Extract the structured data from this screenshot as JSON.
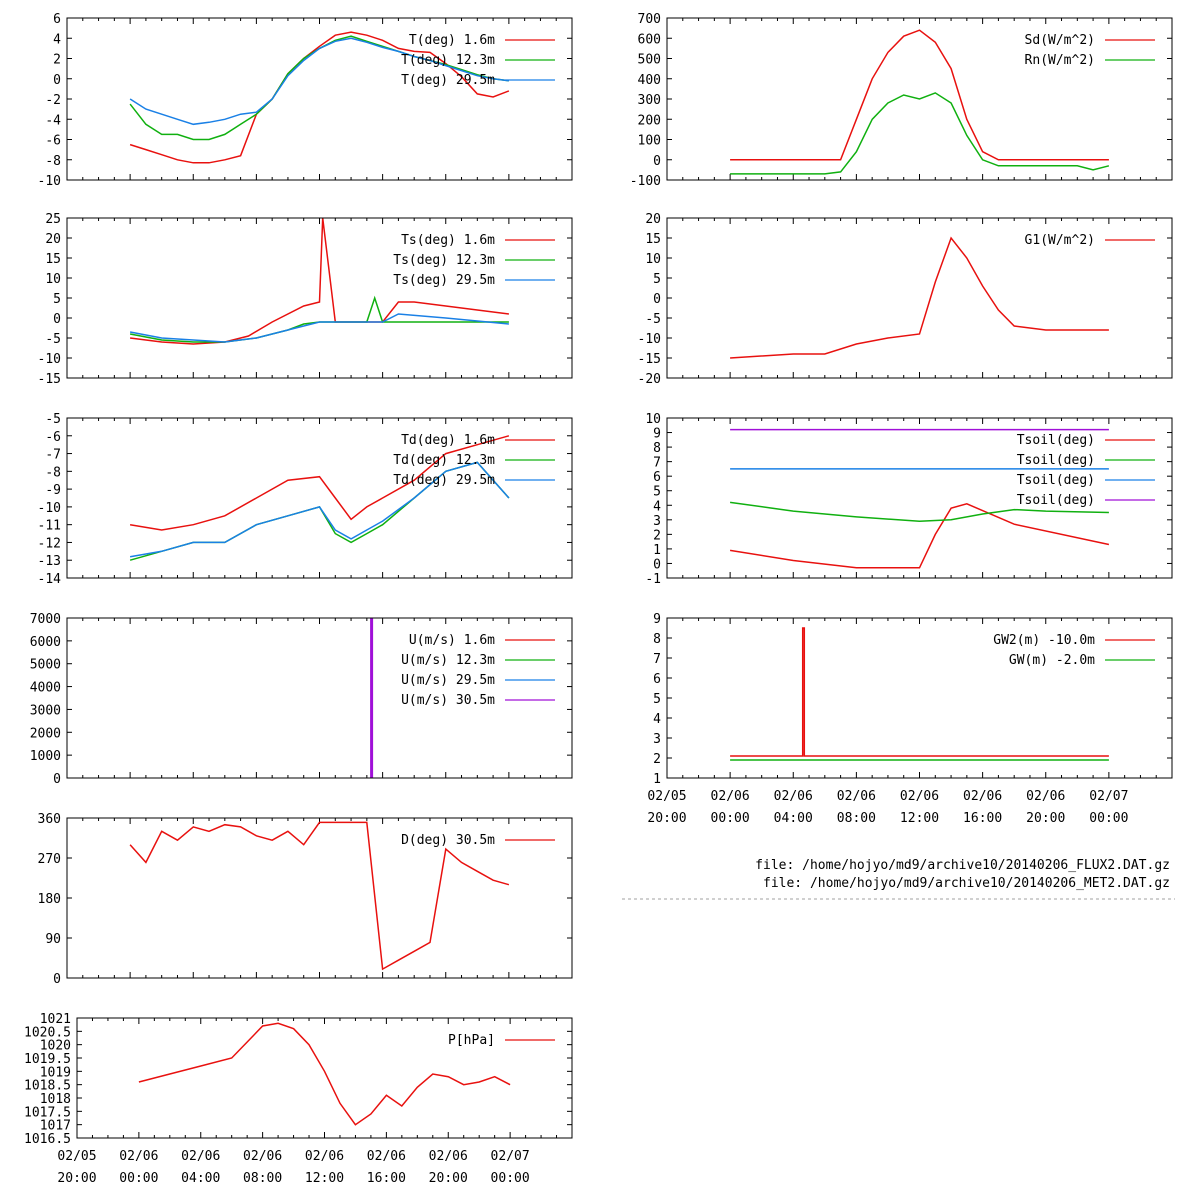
{
  "colors": {
    "red": "#e8110f",
    "green": "#10b010",
    "blue": "#1a80e6",
    "purple": "#a010d8"
  },
  "chart_data": [
    {
      "id": "air-temperature",
      "type": "line",
      "x_range": [
        -4,
        28
      ],
      "ylim": [
        -10,
        6
      ],
      "yticks": [
        -10,
        -8,
        -6,
        -4,
        -2,
        0,
        2,
        4,
        6
      ],
      "series": [
        {
          "name": "T(deg)  1.6m",
          "color": "#e8110f",
          "x": [
            0,
            1,
            2,
            3,
            4,
            5,
            6,
            7,
            8,
            9,
            10,
            11,
            12,
            13,
            14,
            15,
            16,
            17,
            18,
            19,
            20,
            21,
            22,
            23,
            24
          ],
          "values": [
            -6.5,
            -7.0,
            -7.5,
            -8.0,
            -8.3,
            -8.3,
            -8.0,
            -7.6,
            -3.5,
            -2.0,
            0.5,
            2.0,
            3.2,
            4.3,
            4.6,
            4.3,
            3.8,
            3.0,
            2.7,
            2.6,
            1.5,
            0.2,
            -1.5,
            -1.8,
            -1.2
          ]
        },
        {
          "name": "T(deg) 12.3m",
          "color": "#10b010",
          "x": [
            0,
            1,
            2,
            3,
            4,
            5,
            6,
            7,
            8,
            9,
            10,
            11,
            12,
            13,
            14,
            15,
            16,
            17,
            18,
            19,
            20,
            21,
            22,
            23,
            24
          ],
          "values": [
            -2.5,
            -4.5,
            -5.5,
            -5.5,
            -6.0,
            -6.0,
            -5.5,
            -4.5,
            -3.5,
            -2.0,
            0.5,
            2.0,
            3.0,
            3.8,
            4.2,
            3.7,
            3.2,
            2.7,
            2.2,
            1.8,
            1.4,
            0.9,
            0.4,
            0.0,
            -0.2
          ]
        },
        {
          "name": "T(deg) 29.5m",
          "color": "#1a80e6",
          "x": [
            0,
            1,
            2,
            3,
            4,
            5,
            6,
            7,
            8,
            9,
            10,
            11,
            12,
            13,
            14,
            15,
            16,
            17,
            18,
            19,
            20,
            21,
            22,
            23,
            24
          ],
          "values": [
            -2.0,
            -3.0,
            -3.5,
            -4.0,
            -4.5,
            -4.3,
            -4.0,
            -3.5,
            -3.3,
            -2.0,
            0.3,
            1.8,
            3.0,
            3.7,
            4.0,
            3.6,
            3.1,
            2.7,
            2.2,
            1.8,
            1.3,
            0.8,
            0.3,
            0.0,
            -0.2
          ]
        }
      ]
    },
    {
      "id": "radiation",
      "type": "line",
      "x_range": [
        -4,
        28
      ],
      "ylim": [
        -100,
        700
      ],
      "yticks": [
        -100,
        0,
        100,
        200,
        300,
        400,
        500,
        600,
        700
      ],
      "series": [
        {
          "name": "Sd(W/m^2)",
          "color": "#e8110f",
          "x": [
            0,
            6,
            7,
            8,
            9,
            10,
            11,
            12,
            13,
            14,
            15,
            16,
            17,
            24
          ],
          "values": [
            0,
            0,
            0,
            200,
            400,
            530,
            610,
            640,
            580,
            450,
            200,
            40,
            0,
            0
          ]
        },
        {
          "name": "Rn(W/m^2)",
          "color": "#10b010",
          "x": [
            0,
            6,
            7,
            8,
            9,
            10,
            11,
            12,
            13,
            14,
            15,
            16,
            17,
            22,
            23,
            24
          ],
          "values": [
            -70,
            -70,
            -60,
            40,
            200,
            280,
            320,
            300,
            330,
            280,
            120,
            0,
            -30,
            -30,
            -50,
            -30
          ]
        }
      ]
    },
    {
      "id": "surface-temperature",
      "type": "line",
      "x_range": [
        -4,
        28
      ],
      "ylim": [
        -15,
        25
      ],
      "yticks": [
        -15,
        -10,
        -5,
        0,
        5,
        10,
        15,
        20,
        25
      ],
      "series": [
        {
          "name": "Ts(deg)  1.6m",
          "color": "#e8110f",
          "x": [
            0,
            2,
            4,
            6,
            7.5,
            9,
            11,
            12,
            12.2,
            13,
            14,
            16,
            17,
            18,
            20,
            22,
            24
          ],
          "values": [
            -5,
            -6,
            -6.5,
            -6,
            -4.5,
            -1,
            3,
            4,
            25,
            -1,
            -1,
            -1,
            4,
            4,
            3,
            2,
            1
          ]
        },
        {
          "name": "Ts(deg) 12.3m",
          "color": "#10b010",
          "x": [
            0,
            2,
            4,
            6,
            8,
            10,
            11,
            12,
            14,
            15,
            15.5,
            16,
            17,
            24
          ],
          "values": [
            -4,
            -5.5,
            -6,
            -6,
            -5,
            -3,
            -1.5,
            -1,
            -1,
            -1,
            5,
            -1,
            -1,
            -1
          ]
        },
        {
          "name": "Ts(deg) 29.5m",
          "color": "#1a80e6",
          "x": [
            0,
            2,
            4,
            6,
            8,
            10,
            12,
            14,
            16,
            17,
            20,
            24
          ],
          "values": [
            -3.5,
            -5,
            -5.5,
            -6,
            -5,
            -3,
            -1,
            -1,
            -1,
            1,
            0,
            -1.5
          ]
        }
      ]
    },
    {
      "id": "ground-heat-flux",
      "type": "line",
      "x_range": [
        -4,
        28
      ],
      "ylim": [
        -20,
        20
      ],
      "yticks": [
        -20,
        -15,
        -10,
        -5,
        0,
        5,
        10,
        15,
        20
      ],
      "series": [
        {
          "name": "G1(W/m^2)",
          "color": "#e8110f",
          "x": [
            0,
            4,
            6,
            8,
            10,
            12,
            13,
            14,
            15,
            16,
            17,
            18,
            20,
            24
          ],
          "values": [
            -15,
            -14,
            -14,
            -11.5,
            -10,
            -9,
            4,
            15,
            10,
            3,
            -3,
            -7,
            -8,
            -8
          ]
        }
      ]
    },
    {
      "id": "dew-point",
      "type": "line",
      "x_range": [
        -4,
        28
      ],
      "ylim": [
        -14,
        -5
      ],
      "yticks": [
        -14,
        -13,
        -12,
        -11,
        -10,
        -9,
        -8,
        -7,
        -6,
        -5
      ],
      "series": [
        {
          "name": "Td(deg)  1.6m",
          "color": "#e8110f",
          "x": [
            0,
            2,
            4,
            6,
            8,
            10,
            12,
            13,
            14,
            15,
            16,
            18,
            20,
            22,
            24
          ],
          "values": [
            -11,
            -11.3,
            -11,
            -10.5,
            -9.5,
            -8.5,
            -8.3,
            -9.5,
            -10.7,
            -10,
            -9.5,
            -8.5,
            -7,
            -6.5,
            -6
          ]
        },
        {
          "name": "Td(deg) 12.3m",
          "color": "#10b010",
          "x": [
            0,
            2,
            4,
            6,
            8,
            10,
            12,
            13,
            14,
            15,
            16,
            18,
            20,
            22,
            24
          ],
          "values": [
            -13,
            -12.5,
            -12,
            -12,
            -11,
            -10.5,
            -10,
            -11.5,
            -12,
            -11.5,
            -11,
            -9.5,
            -8,
            -7.5,
            -9.5
          ]
        },
        {
          "name": "Td(deg) 29.5m",
          "color": "#1a80e6",
          "x": [
            0,
            2,
            4,
            6,
            8,
            10,
            12,
            13,
            14,
            15,
            16,
            18,
            20,
            22,
            24
          ],
          "values": [
            -12.8,
            -12.5,
            -12,
            -12,
            -11,
            -10.5,
            -10,
            -11.3,
            -11.8,
            -11.3,
            -10.8,
            -9.5,
            -8,
            -7.5,
            -9.5
          ]
        }
      ]
    },
    {
      "id": "soil-temperature",
      "type": "line",
      "x_range": [
        -4,
        28
      ],
      "ylim": [
        -1,
        10
      ],
      "yticks": [
        -1,
        0,
        1,
        2,
        3,
        4,
        5,
        6,
        7,
        8,
        9,
        10
      ],
      "series": [
        {
          "name": "Tsoil(deg)",
          "color": "#e8110f",
          "x": [
            0,
            4,
            8,
            12,
            13,
            14,
            15,
            18,
            24
          ],
          "values": [
            0.9,
            0.2,
            -0.3,
            -0.3,
            2.0,
            3.8,
            4.1,
            2.7,
            1.3
          ]
        },
        {
          "name": "Tsoil(deg)",
          "color": "#10b010",
          "x": [
            0,
            4,
            8,
            12,
            14,
            16,
            18,
            20,
            24
          ],
          "values": [
            4.2,
            3.6,
            3.2,
            2.9,
            3.0,
            3.4,
            3.7,
            3.6,
            3.5
          ]
        },
        {
          "name": "Tsoil(deg)",
          "color": "#1a80e6",
          "x": [
            0,
            24
          ],
          "values": [
            6.5,
            6.5
          ]
        },
        {
          "name": "Tsoil(deg)",
          "color": "#a010d8",
          "x": [
            0,
            24
          ],
          "values": [
            9.2,
            9.2
          ]
        }
      ]
    },
    {
      "id": "wind-speed",
      "type": "line",
      "x_range": [
        -4,
        28
      ],
      "ylim": [
        0,
        7000
      ],
      "yticks": [
        0,
        1000,
        2000,
        3000,
        4000,
        5000,
        6000,
        7000
      ],
      "series": [
        {
          "name": "U(m/s)  1.6m",
          "color": "#e8110f",
          "x": [],
          "values": []
        },
        {
          "name": "U(m/s) 12.3m",
          "color": "#10b010",
          "x": [],
          "values": []
        },
        {
          "name": "U(m/s) 29.5m",
          "color": "#1a80e6",
          "x": [],
          "values": []
        },
        {
          "name": "U(m/s) 30.5m",
          "color": "#a010d8",
          "x": [
            15.3,
            15.3
          ],
          "values": [
            0,
            7000
          ]
        }
      ]
    },
    {
      "id": "ground-water",
      "type": "line",
      "x_range": [
        -4,
        28
      ],
      "ylim": [
        1,
        9
      ],
      "yticks": [
        1,
        2,
        3,
        4,
        5,
        6,
        7,
        8,
        9
      ],
      "series": [
        {
          "name": "GW2(m) -10.0m",
          "color": "#e8110f",
          "x": [
            0,
            4.6,
            4.6,
            4.7,
            4.7,
            24
          ],
          "values": [
            2.1,
            2.1,
            8.5,
            8.5,
            2.1,
            2.1
          ]
        },
        {
          "name": "GW(m) -2.0m",
          "color": "#10b010",
          "x": [
            0,
            24
          ],
          "values": [
            1.9,
            1.9
          ]
        }
      ]
    },
    {
      "id": "wind-direction",
      "type": "line",
      "x_range": [
        -4,
        28
      ],
      "ylim": [
        0,
        360
      ],
      "yticks": [
        0,
        90,
        180,
        270,
        360
      ],
      "series": [
        {
          "name": "D(deg)  30.5m",
          "color": "#e8110f",
          "x": [
            0,
            1,
            2,
            3,
            4,
            5,
            6,
            7,
            8,
            9,
            10,
            11,
            12,
            13,
            14,
            15,
            16,
            17,
            18,
            19,
            20,
            21,
            22,
            23,
            24
          ],
          "values": [
            300,
            260,
            330,
            310,
            340,
            330,
            345,
            340,
            320,
            310,
            330,
            300,
            350,
            350,
            350,
            350,
            20,
            40,
            60,
            80,
            290,
            260,
            240,
            220,
            210
          ]
        }
      ]
    },
    {
      "id": "pressure",
      "type": "line",
      "x_range": [
        -4,
        28
      ],
      "ylim": [
        1016.5,
        1021
      ],
      "yticks": [
        1016.5,
        1017,
        1017.5,
        1018,
        1018.5,
        1019,
        1019.5,
        1020,
        1020.5,
        1021
      ],
      "ytick_labels": [
        "1016.5",
        "1017",
        "1017.5",
        "1018",
        "1018.5",
        "1019",
        "1019.5",
        "1020",
        "1020.5",
        "1021"
      ],
      "series": [
        {
          "name": "P[hPa]",
          "color": "#e8110f",
          "x": [
            0,
            2,
            4,
            6,
            7,
            8,
            9,
            10,
            11,
            12,
            13,
            14,
            15,
            16,
            17,
            18,
            19,
            20,
            21,
            22,
            23,
            24
          ],
          "values": [
            1018.6,
            1018.9,
            1019.2,
            1019.5,
            1020.1,
            1020.7,
            1020.8,
            1020.6,
            1020.0,
            1019.0,
            1017.8,
            1017.0,
            1017.4,
            1018.1,
            1017.7,
            1018.4,
            1018.9,
            1018.8,
            1018.5,
            1018.6,
            1018.8,
            1018.5
          ]
        }
      ]
    }
  ],
  "x_axis": {
    "ticks": [
      -4,
      0,
      4,
      8,
      12,
      16,
      20,
      24
    ],
    "dates": [
      "02/05",
      "02/06",
      "02/06",
      "02/06",
      "02/06",
      "02/06",
      "02/06",
      "02/07"
    ],
    "times": [
      "20:00",
      "00:00",
      "04:00",
      "08:00",
      "12:00",
      "16:00",
      "20:00",
      "00:00"
    ]
  },
  "file_info": {
    "line1": "file: /home/hojyo/md9/archive10/20140206_FLUX2.DAT.gz",
    "line2": "file: /home/hojyo/md9/archive10/20140206_MET2.DAT.gz"
  }
}
